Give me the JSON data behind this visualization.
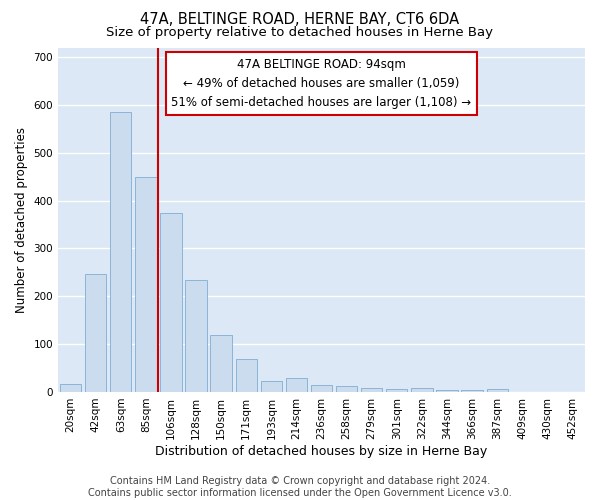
{
  "title": "47A, BELTINGE ROAD, HERNE BAY, CT6 6DA",
  "subtitle": "Size of property relative to detached houses in Herne Bay",
  "xlabel": "Distribution of detached houses by size in Herne Bay",
  "ylabel": "Number of detached properties",
  "categories": [
    "20sqm",
    "42sqm",
    "63sqm",
    "85sqm",
    "106sqm",
    "128sqm",
    "150sqm",
    "171sqm",
    "193sqm",
    "214sqm",
    "236sqm",
    "258sqm",
    "279sqm",
    "301sqm",
    "322sqm",
    "344sqm",
    "366sqm",
    "387sqm",
    "409sqm",
    "430sqm",
    "452sqm"
  ],
  "values": [
    17,
    247,
    585,
    450,
    375,
    235,
    120,
    68,
    23,
    30,
    14,
    12,
    9,
    7,
    9,
    4,
    4,
    7,
    0,
    0,
    0
  ],
  "bar_color": "#ccdcef",
  "bar_edge_color": "#8ab4d8",
  "vline_x": 3.5,
  "vline_color": "#cc0000",
  "annotation_line1": "47A BELTINGE ROAD: 94sqm",
  "annotation_line2": "← 49% of detached houses are smaller (1,059)",
  "annotation_line3": "51% of semi-detached houses are larger (1,108) →",
  "annotation_box_color": "#ffffff",
  "annotation_box_edge": "#cc0000",
  "ylim": [
    0,
    720
  ],
  "yticks": [
    0,
    100,
    200,
    300,
    400,
    500,
    600,
    700
  ],
  "fig_background": "#ffffff",
  "axes_background": "#dce8f5",
  "grid_color": "#ffffff",
  "footer": "Contains HM Land Registry data © Crown copyright and database right 2024.\nContains public sector information licensed under the Open Government Licence v3.0.",
  "title_fontsize": 10.5,
  "subtitle_fontsize": 9.5,
  "xlabel_fontsize": 9,
  "ylabel_fontsize": 8.5,
  "tick_fontsize": 7.5,
  "annot_fontsize": 8.5,
  "footer_fontsize": 7
}
